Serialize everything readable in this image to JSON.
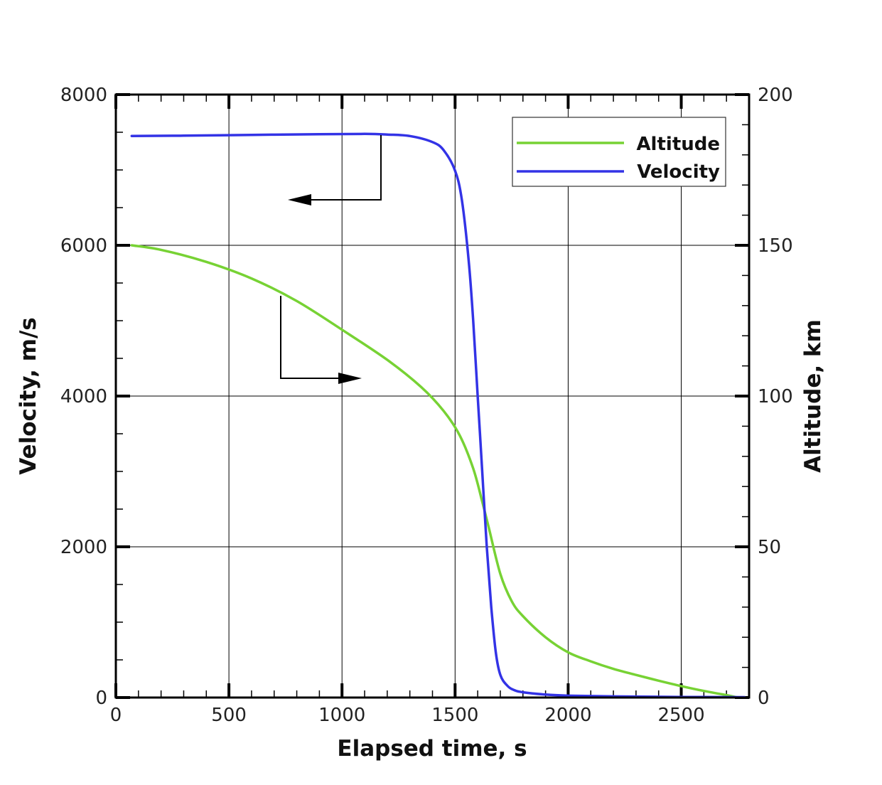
{
  "chart_data": {
    "type": "line",
    "xlabel": "Elapsed time, s",
    "ylabel": "Velocity, m/s",
    "y2label": "Altitude,  km",
    "xlim": [
      0,
      2800
    ],
    "ylim": [
      0,
      8000
    ],
    "y2lim": [
      0,
      200
    ],
    "x_ticks": [
      0,
      500,
      1000,
      1500,
      2000,
      2500
    ],
    "y_ticks": [
      0,
      2000,
      4000,
      6000,
      8000
    ],
    "y2_ticks": [
      0,
      50,
      100,
      150,
      200
    ],
    "x_tick_labels": [
      "0",
      "500",
      "1000",
      "1500",
      "2000",
      "2500"
    ],
    "y_tick_labels": [
      "0",
      "2000",
      "4000",
      "6000",
      "8000"
    ],
    "y2_tick_labels": [
      "0",
      "50",
      "100",
      "150",
      "200"
    ],
    "grid": true,
    "legend_position": "top-right",
    "series": [
      {
        "name": "Altitude",
        "axis": "right",
        "color": "#77d234",
        "x": [
          70,
          200,
          400,
          600,
          800,
          1000,
          1200,
          1350,
          1450,
          1520,
          1580,
          1620,
          1650,
          1700,
          1750,
          1800,
          1900,
          2000,
          2100,
          2200,
          2300,
          2400,
          2500,
          2600,
          2700,
          2750
        ],
        "y": [
          150,
          148.5,
          144.5,
          139,
          131.5,
          122,
          112,
          103,
          95,
          87,
          76,
          65,
          56,
          41,
          32,
          27,
          20,
          15,
          12,
          9.5,
          7.5,
          5.6,
          3.8,
          2.2,
          0.8,
          0
        ]
      },
      {
        "name": "Velocity",
        "axis": "left",
        "color": "#3333e6",
        "x": [
          70,
          300,
          600,
          900,
          1100,
          1200,
          1300,
          1400,
          1450,
          1500,
          1530,
          1560,
          1580,
          1600,
          1620,
          1640,
          1660,
          1680,
          1700,
          1730,
          1760,
          1800,
          1900,
          2000,
          2200,
          2500,
          2780
        ],
        "y": [
          7450,
          7455,
          7465,
          7475,
          7478,
          7470,
          7450,
          7370,
          7260,
          6990,
          6600,
          5800,
          5000,
          4000,
          3000,
          2000,
          1200,
          600,
          300,
          160,
          100,
          70,
          40,
          25,
          15,
          8,
          5
        ]
      }
    ],
    "annotations": [
      {
        "type": "arrow",
        "target": "left-axis",
        "series": "Velocity"
      },
      {
        "type": "arrow",
        "target": "right-axis",
        "series": "Altitude"
      }
    ]
  }
}
